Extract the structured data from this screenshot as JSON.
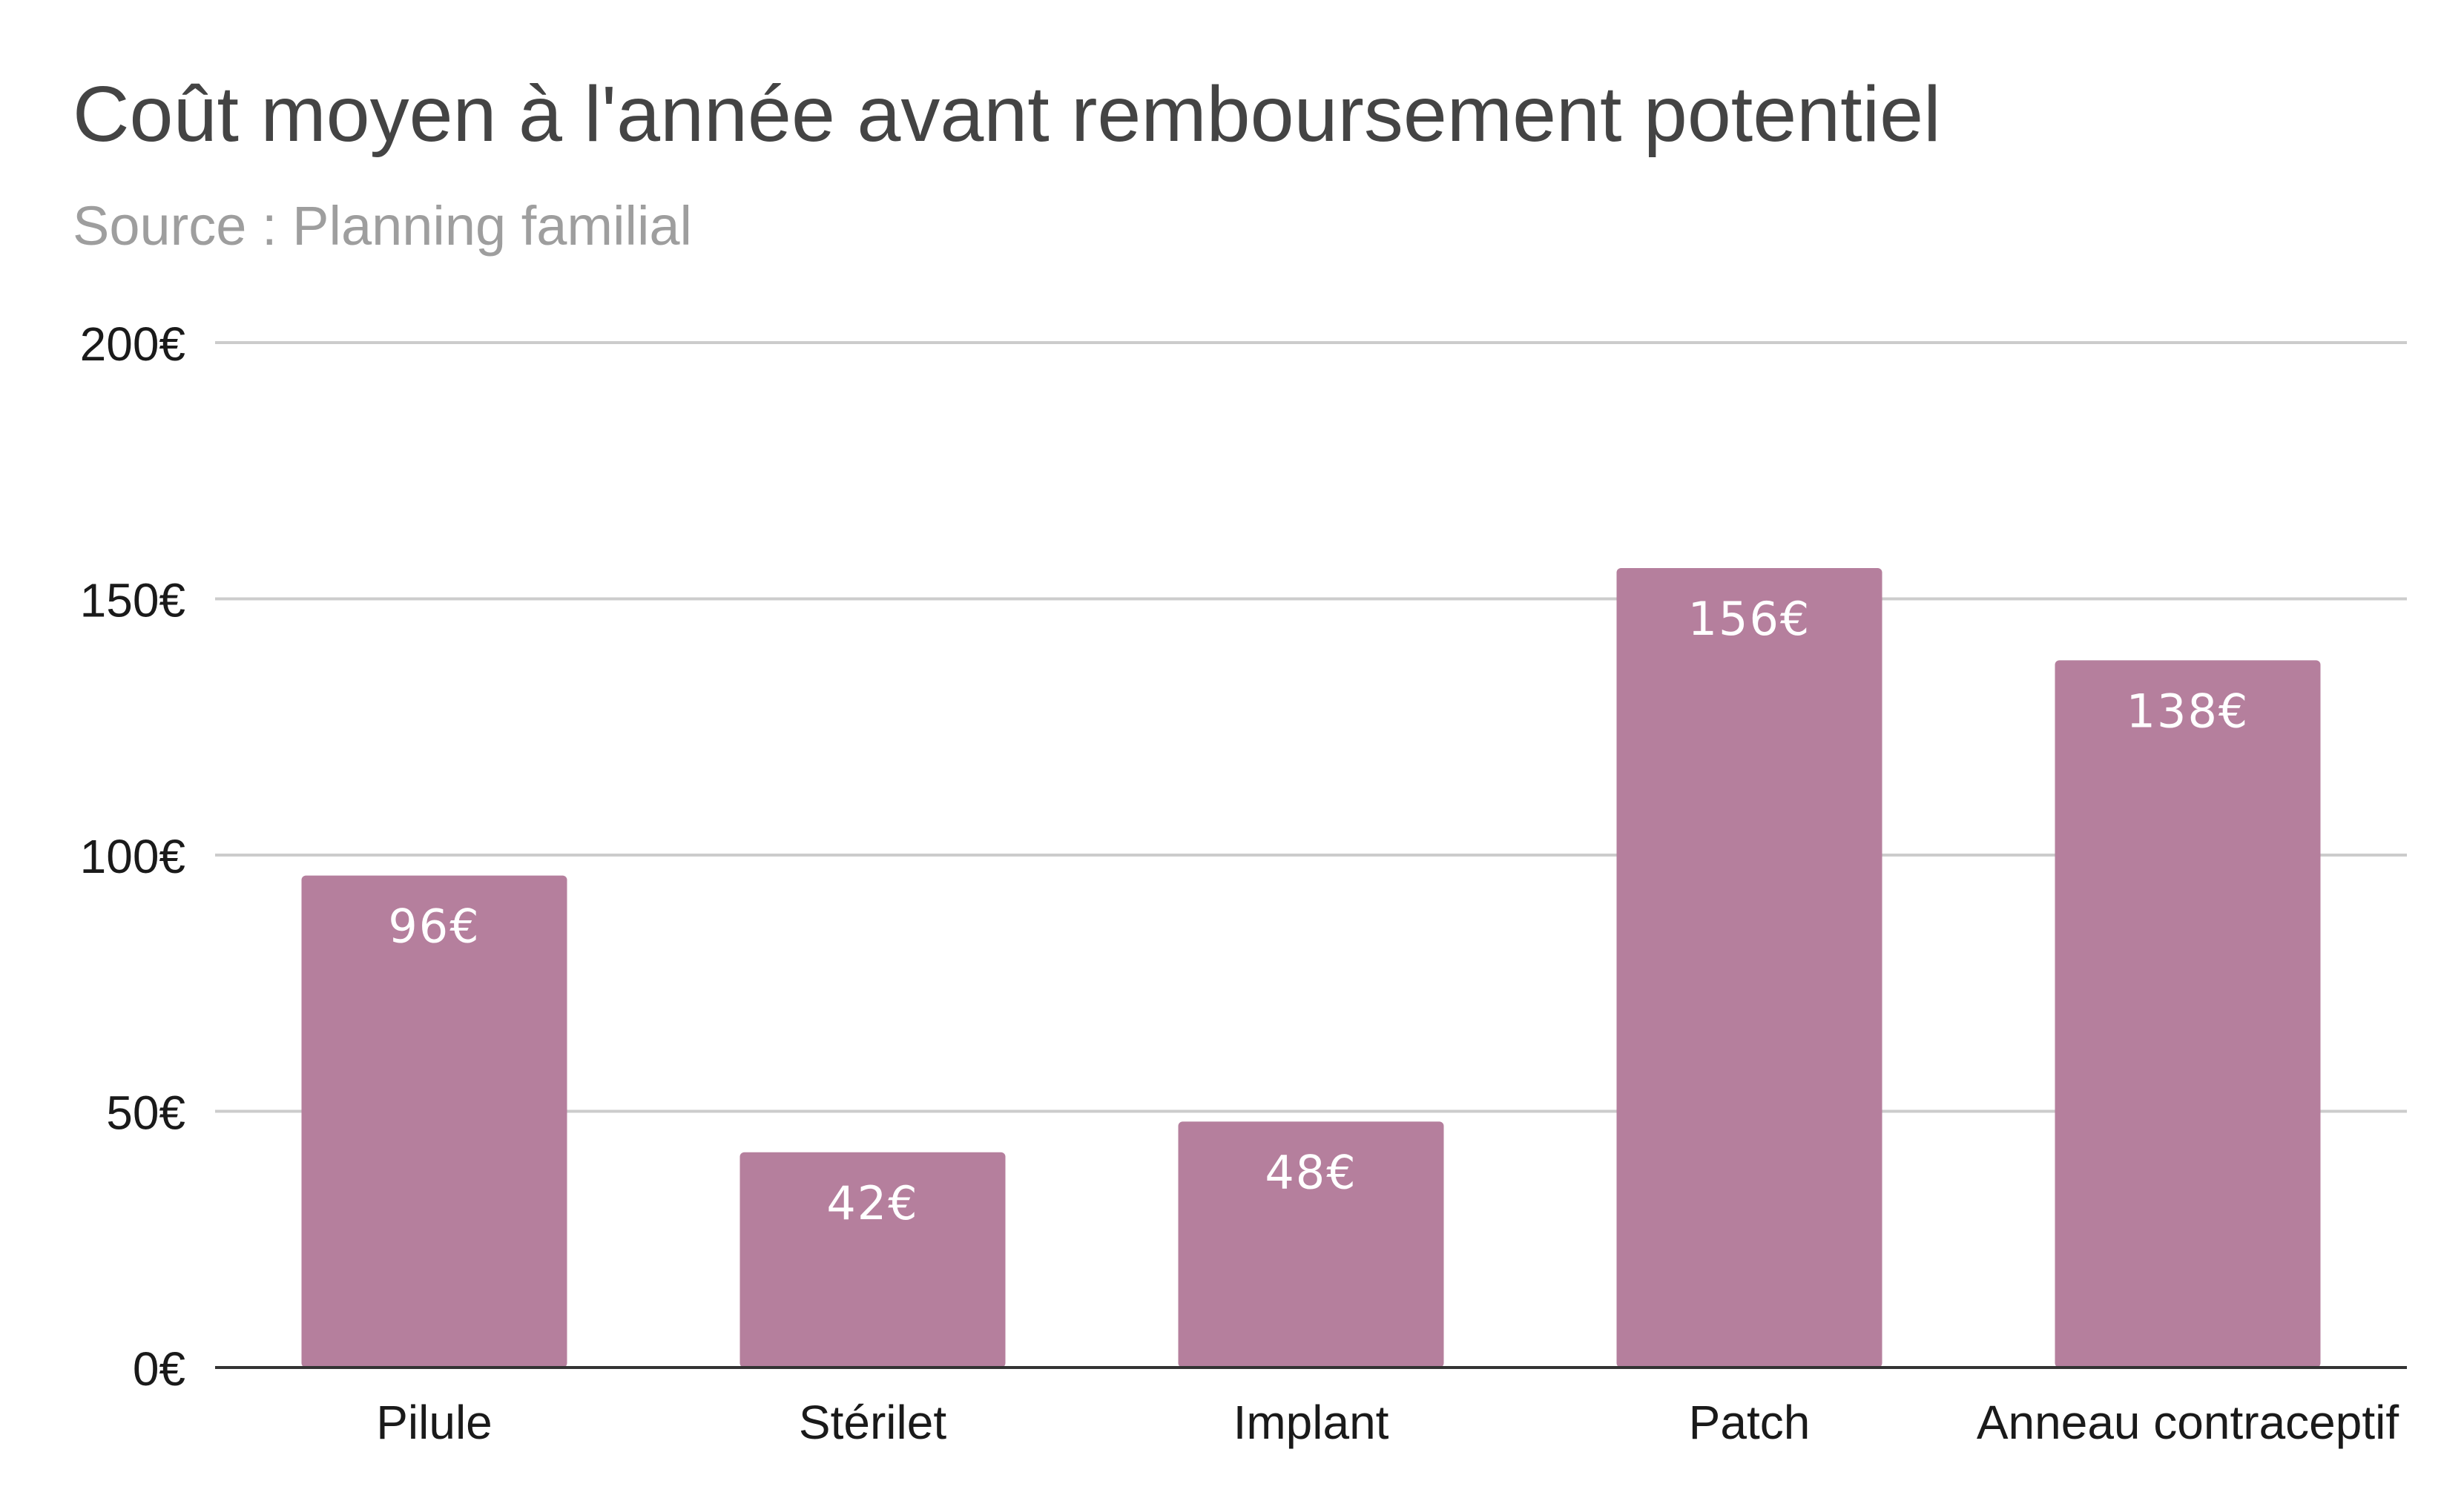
{
  "chart_data": {
    "type": "bar",
    "title": "Coût moyen à l'année avant remboursement potentiel",
    "subtitle": "Source : Planning familial",
    "categories": [
      "Pilule",
      "Stérilet",
      "Implant",
      "Patch",
      "Anneau contraceptif"
    ],
    "values": [
      96,
      42,
      48,
      156,
      138
    ],
    "data_labels": [
      "96€",
      "42€",
      "48€",
      "156€",
      "138€"
    ],
    "ylim": [
      0,
      200
    ],
    "y_ticks": [
      0,
      50,
      100,
      150,
      200
    ],
    "y_tick_labels": [
      "0€",
      "50€",
      "100€",
      "150€",
      "200€"
    ],
    "xlabel": "",
    "ylabel": "",
    "grid": true,
    "legend": "none",
    "bar_color": "#b57f9d"
  }
}
